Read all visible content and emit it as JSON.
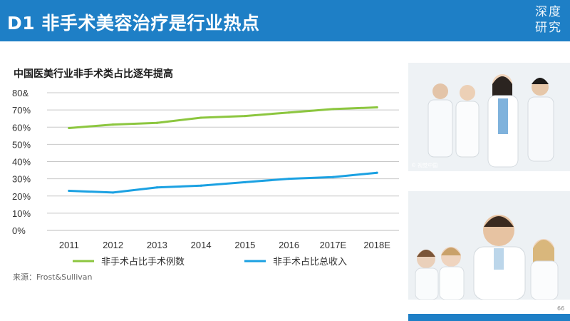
{
  "header": {
    "title": "D1 非手术美容治疗是行业热点",
    "logo_line1": "深度",
    "logo_line2": "研究",
    "bg_color": "#1e7fc6"
  },
  "source": "来源：Frost&Sullivan",
  "page_number": "66",
  "photo_top": {
    "caption": "© 视觉中国"
  },
  "chart_data": {
    "type": "line",
    "title": "中国医美行业非手术类占比逐年提高",
    "categories": [
      "2011",
      "2012",
      "2013",
      "2014",
      "2015",
      "2016",
      "2017E",
      "2018E"
    ],
    "ytick_labels": [
      "0%",
      "10%",
      "20%",
      "30%",
      "40%",
      "50%",
      "60%",
      "70%",
      "80&"
    ],
    "ylim": [
      0,
      80
    ],
    "y_unit": "%",
    "grid": true,
    "legend_position": "bottom",
    "series": [
      {
        "name": "非手术占比手术例数",
        "color": "#8cc63f",
        "values": [
          59.5,
          61.5,
          62.5,
          65.5,
          66.5,
          68.5,
          70.5,
          71.5
        ]
      },
      {
        "name": "非手术占比总收入",
        "color": "#1ba1e2",
        "values": [
          23,
          22,
          25,
          26,
          28,
          30,
          31,
          33.5
        ]
      }
    ]
  }
}
